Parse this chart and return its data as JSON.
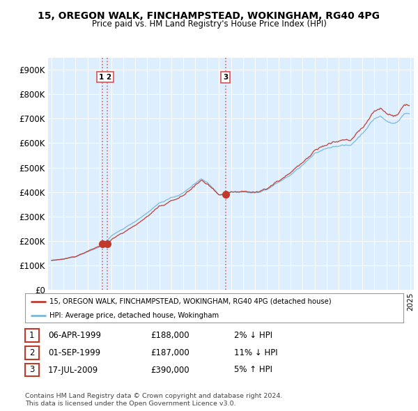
{
  "title": "15, OREGON WALK, FINCHAMPSTEAD, WOKINGHAM, RG40 4PG",
  "subtitle": "Price paid vs. HM Land Registry's House Price Index (HPI)",
  "ylim": [
    0,
    950000
  ],
  "yticks": [
    0,
    100000,
    200000,
    300000,
    400000,
    500000,
    600000,
    700000,
    800000,
    900000
  ],
  "ytick_labels": [
    "£0",
    "£100K",
    "£200K",
    "£300K",
    "£400K",
    "£500K",
    "£600K",
    "£700K",
    "£800K",
    "£900K"
  ],
  "sale_dates_num": [
    1999.27,
    1999.67,
    2009.54
  ],
  "sale_prices": [
    188000,
    187000,
    390000
  ],
  "sale_labels": [
    "1",
    "2",
    "3"
  ],
  "vline_color": "#e05050",
  "vline_style": ":",
  "sale_dot_color": "#c0392b",
  "hpi_line_color": "#7ab8d8",
  "price_line_color": "#c0392b",
  "plot_bg_color": "#ddeeff",
  "legend_entries": [
    "15, OREGON WALK, FINCHAMPSTEAD, WOKINGHAM, RG40 4PG (detached house)",
    "HPI: Average price, detached house, Wokingham"
  ],
  "table_rows": [
    [
      "1",
      "06-APR-1999",
      "£188,000",
      "2% ↓ HPI"
    ],
    [
      "2",
      "01-SEP-1999",
      "£187,000",
      "11% ↓ HPI"
    ],
    [
      "3",
      "17-JUL-2009",
      "£390,000",
      "5% ↑ HPI"
    ]
  ],
  "footnote1": "Contains HM Land Registry data © Crown copyright and database right 2024.",
  "footnote2": "This data is licensed under the Open Government Licence v3.0.",
  "background_color": "#ffffff"
}
